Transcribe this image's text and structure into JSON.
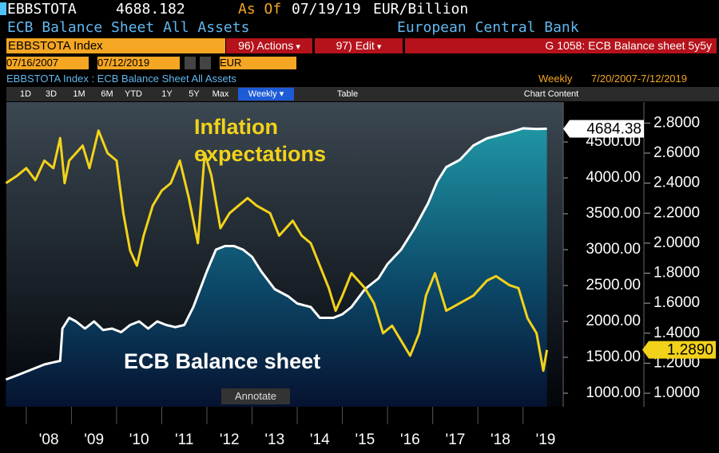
{
  "header": {
    "ticker": "EBBSTOTA",
    "last": "4688.182",
    "as_of": "As Of",
    "date": "07/19/19",
    "units": "EUR/Billion",
    "name": "ECB Balance Sheet All Assets",
    "source": "European Central Bank"
  },
  "toolbar": {
    "security": "EBBSTOTA Index",
    "actions": "96) Actions",
    "edit": "97) Edit",
    "graph": "G 1058: ECB Balance sheet 5y5y",
    "start": "07/16/2007",
    "end": "07/12/2019",
    "currency": "EUR",
    "description": "EBBSTOTA Index : ECB Balance Sheet All Assets",
    "frequency": "Weekly",
    "range": "7/20/2007-7/12/2019",
    "periods": [
      "1D",
      "3D",
      "1M",
      "6M",
      "YTD",
      "1Y",
      "5Y",
      "Max"
    ],
    "period_select": "Weekly",
    "table": "Table",
    "chart_content": "Chart Content",
    "annotate": "Annotate"
  },
  "chart_data": {
    "type": "line",
    "xlim": [
      2007.56,
      2019.89
    ],
    "xticks": [
      {
        "value": 2008,
        "label": "'08"
      },
      {
        "value": 2009,
        "label": "'09"
      },
      {
        "value": 2010,
        "label": "'10"
      },
      {
        "value": 2011,
        "label": "'11"
      },
      {
        "value": 2012,
        "label": "'12"
      },
      {
        "value": 2013,
        "label": "'13"
      },
      {
        "value": 2014,
        "label": "'14"
      },
      {
        "value": 2015,
        "label": "'15"
      },
      {
        "value": 2016,
        "label": "'16"
      },
      {
        "value": 2017,
        "label": "'17"
      },
      {
        "value": 2018,
        "label": "'18"
      },
      {
        "value": 2019,
        "label": "'19"
      }
    ],
    "ylim": [
      811,
      5056
    ],
    "yticks": [
      {
        "value": 1000,
        "label": "1000.00"
      },
      {
        "value": 1500,
        "label": "1500.00"
      },
      {
        "value": 2000,
        "label": "2000.00"
      },
      {
        "value": 2500,
        "label": "2500.00"
      },
      {
        "value": 3000,
        "label": "3000.00"
      },
      {
        "value": 3500,
        "label": "3500.00"
      },
      {
        "value": 4000,
        "label": "4000.00"
      },
      {
        "value": 4500,
        "label": "4500.00"
      }
    ],
    "y2lim": [
      0.91,
      2.94
    ],
    "y2ticks": [
      {
        "value": 1.0,
        "label": "1.0000"
      },
      {
        "value": 1.2,
        "label": "1.2000"
      },
      {
        "value": 1.4,
        "label": "1.4000"
      },
      {
        "value": 1.6,
        "label": "1.6000"
      },
      {
        "value": 1.8,
        "label": "1.8000"
      },
      {
        "value": 2.0,
        "label": "2.0000"
      },
      {
        "value": 2.2,
        "label": "2.2000"
      },
      {
        "value": 2.4,
        "label": "2.4000"
      },
      {
        "value": 2.6,
        "label": "2.6000"
      },
      {
        "value": 2.8,
        "label": "2.8000"
      }
    ],
    "series": [
      {
        "name": "ECB Balance sheet",
        "color": "#ffffff",
        "area": true,
        "last_value": 4684.38,
        "x": [
          2007.55,
          2007.8,
          2008.0,
          2008.2,
          2008.4,
          2008.6,
          2008.75,
          2008.8,
          2008.95,
          2009.1,
          2009.3,
          2009.5,
          2009.7,
          2009.9,
          2010.1,
          2010.3,
          2010.5,
          2010.7,
          2010.9,
          2011.1,
          2011.3,
          2011.5,
          2011.7,
          2011.85,
          2012.0,
          2012.2,
          2012.4,
          2012.6,
          2012.8,
          2013.0,
          2013.2,
          2013.5,
          2013.8,
          2014.0,
          2014.3,
          2014.5,
          2014.8,
          2015.0,
          2015.2,
          2015.5,
          2015.8,
          2016.0,
          2016.3,
          2016.6,
          2016.9,
          2017.1,
          2017.3,
          2017.6,
          2017.9,
          2018.2,
          2018.5,
          2018.8,
          2019.0,
          2019.3,
          2019.53
        ],
        "values": [
          1190,
          1250,
          1300,
          1350,
          1400,
          1430,
          1450,
          1900,
          2050,
          2000,
          1900,
          2000,
          1880,
          1900,
          1850,
          1950,
          2000,
          1900,
          2000,
          1950,
          1920,
          1950,
          2200,
          2450,
          2700,
          3000,
          3050,
          3050,
          3000,
          2900,
          2700,
          2450,
          2350,
          2250,
          2200,
          2050,
          2050,
          2100,
          2200,
          2450,
          2600,
          2800,
          3000,
          3300,
          3650,
          3950,
          4150,
          4250,
          4450,
          4550,
          4600,
          4650,
          4690,
          4680,
          4684.38
        ]
      },
      {
        "name": "Inflation expectations",
        "color": "#f2d21a",
        "axis": "y2",
        "last_value": {
          "value": 1.289,
          "label": "1.2890"
        },
        "x": [
          2007.55,
          2007.8,
          2008.0,
          2008.2,
          2008.4,
          2008.6,
          2008.75,
          2008.85,
          2008.95,
          2009.1,
          2009.25,
          2009.4,
          2009.6,
          2009.8,
          2010.0,
          2010.15,
          2010.3,
          2010.45,
          2010.6,
          2010.8,
          2011.0,
          2011.2,
          2011.4,
          2011.6,
          2011.8,
          2011.95,
          2012.1,
          2012.3,
          2012.5,
          2012.7,
          2012.9,
          2013.1,
          2013.4,
          2013.6,
          2013.9,
          2014.1,
          2014.3,
          2014.5,
          2014.7,
          2014.85,
          2015.0,
          2015.2,
          2015.35,
          2015.5,
          2015.7,
          2015.9,
          2016.1,
          2016.3,
          2016.5,
          2016.7,
          2016.85,
          2017.05,
          2017.3,
          2017.6,
          2017.9,
          2018.2,
          2018.4,
          2018.7,
          2018.9,
          2019.1,
          2019.3,
          2019.45,
          2019.53
        ],
        "values": [
          2.4,
          2.45,
          2.5,
          2.42,
          2.55,
          2.5,
          2.7,
          2.4,
          2.55,
          2.6,
          2.65,
          2.5,
          2.75,
          2.6,
          2.55,
          2.2,
          1.95,
          1.85,
          2.05,
          2.25,
          2.35,
          2.4,
          2.55,
          2.3,
          2.0,
          2.6,
          2.45,
          2.1,
          2.2,
          2.25,
          2.3,
          2.25,
          2.2,
          2.05,
          2.15,
          2.05,
          2.0,
          1.85,
          1.7,
          1.55,
          1.65,
          1.8,
          1.75,
          1.7,
          1.6,
          1.4,
          1.45,
          1.35,
          1.25,
          1.4,
          1.65,
          1.8,
          1.55,
          1.6,
          1.65,
          1.75,
          1.78,
          1.72,
          1.7,
          1.5,
          1.4,
          1.15,
          1.289
        ]
      }
    ]
  }
}
